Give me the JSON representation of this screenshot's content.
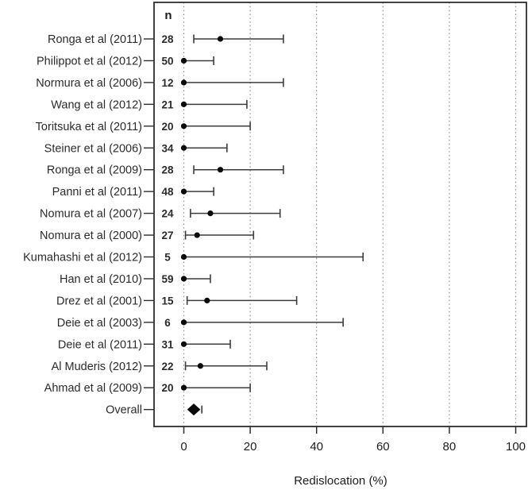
{
  "chart_data": {
    "type": "forest",
    "title": "",
    "xlabel": "Redislocation (%)",
    "xlim": [
      0,
      100
    ],
    "xticks": [
      0,
      20,
      40,
      60,
      80,
      100
    ],
    "grid": "dotted-vertical-at-each-xtick",
    "legend": "none",
    "columns": {
      "n_header": "n"
    },
    "studies": [
      {
        "label": "Ronga et al (2011)",
        "n": 28,
        "estimate": 11,
        "ci_low": 3,
        "ci_high": 30
      },
      {
        "label": "Philippot et al (2012)",
        "n": 50,
        "estimate": 0,
        "ci_low": 0,
        "ci_high": 9
      },
      {
        "label": "Normura et al (2006)",
        "n": 12,
        "estimate": 0,
        "ci_low": 0,
        "ci_high": 30
      },
      {
        "label": "Wang et al (2012)",
        "n": 21,
        "estimate": 0,
        "ci_low": 0,
        "ci_high": 19
      },
      {
        "label": "Toritsuka et al (2011)",
        "n": 20,
        "estimate": 0,
        "ci_low": 0,
        "ci_high": 20
      },
      {
        "label": "Steiner et al (2006)",
        "n": 34,
        "estimate": 0,
        "ci_low": 0,
        "ci_high": 13
      },
      {
        "label": "Ronga et al (2009)",
        "n": 28,
        "estimate": 11,
        "ci_low": 3,
        "ci_high": 30
      },
      {
        "label": "Panni et al (2011)",
        "n": 48,
        "estimate": 0,
        "ci_low": 0,
        "ci_high": 9
      },
      {
        "label": "Nomura et al (2007)",
        "n": 24,
        "estimate": 8,
        "ci_low": 2,
        "ci_high": 29
      },
      {
        "label": "Nomura et al (2000)",
        "n": 27,
        "estimate": 4,
        "ci_low": 0.5,
        "ci_high": 21
      },
      {
        "label": "Kumahashi et al (2012)",
        "n": 5,
        "estimate": 0,
        "ci_low": 0,
        "ci_high": 54
      },
      {
        "label": "Han et al (2010)",
        "n": 59,
        "estimate": 0,
        "ci_low": 0,
        "ci_high": 8
      },
      {
        "label": "Drez et al (2001)",
        "n": 15,
        "estimate": 7,
        "ci_low": 1,
        "ci_high": 34
      },
      {
        "label": "Deie et al (2003)",
        "n": 6,
        "estimate": 0,
        "ci_low": 0,
        "ci_high": 48
      },
      {
        "label": "Deie et al (2011)",
        "n": 31,
        "estimate": 0,
        "ci_low": 0,
        "ci_high": 14
      },
      {
        "label": "Al Muderis (2012)",
        "n": 22,
        "estimate": 5,
        "ci_low": 0.5,
        "ci_high": 25
      },
      {
        "label": "Ahmad et al (2009)",
        "n": 20,
        "estimate": 0,
        "ci_low": 0,
        "ci_high": 20
      }
    ],
    "overall": {
      "label": "Overall",
      "estimate": 3,
      "ci_low": 1,
      "ci_high": 5
    }
  },
  "colors": {
    "background": "#ffffff",
    "border": "#2e2e2e",
    "gridline": "#909090",
    "ci_line": "#3c3c3c",
    "marker": "#0a0a0a",
    "text": "#2b2b2b",
    "axis_text": "#1c1c1c"
  }
}
